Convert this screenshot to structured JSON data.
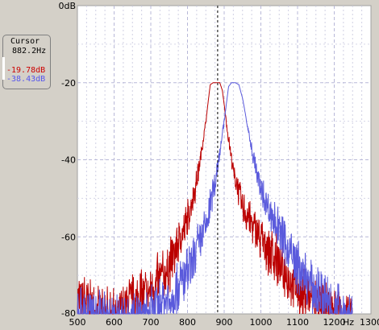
{
  "cursor_panel": {
    "title": "Cursor",
    "frequency": "882.2Hz",
    "readings": [
      {
        "value": "-19.78dB",
        "color": "#cc0000"
      },
      {
        "value": "-38.43dB",
        "color": "#5555ee"
      }
    ]
  },
  "chart_data": {
    "type": "line",
    "x_unit": "Hz",
    "xlim": [
      500,
      1300
    ],
    "ylim": [
      -80,
      0
    ],
    "x_ticks": [
      "500",
      "600",
      "700",
      "800",
      "900",
      "1000",
      "1100",
      "1200",
      "1300"
    ],
    "y_ticks": [
      "0dB",
      "-20",
      "-40",
      "-60",
      "-80"
    ],
    "grid": true,
    "cursor_x": 882.2,
    "series": [
      {
        "color": "#bb0000",
        "x": [
          500,
          550,
          600,
          650,
          700,
          750,
          775,
          800,
          825,
          850,
          862,
          870,
          880,
          888,
          895,
          910,
          925,
          950,
          1000,
          1050,
          1100,
          1150,
          1200,
          1250
        ],
        "y": [
          -74,
          -77,
          -79,
          -75,
          -72,
          -66,
          -60,
          -54,
          -45,
          -30,
          -20.5,
          -20,
          -20,
          -20,
          -22,
          -33,
          -42,
          -51,
          -59,
          -65,
          -72,
          -74,
          -78,
          -79
        ]
      },
      {
        "color": "#5a5adc",
        "x": [
          500,
          550,
          600,
          650,
          700,
          750,
          800,
          850,
          875,
          900,
          912,
          920,
          930,
          940,
          950,
          975,
          1000,
          1050,
          1100,
          1150,
          1200,
          1250
        ],
        "y": [
          -77,
          -79,
          -80,
          -80,
          -78,
          -74,
          -68,
          -56,
          -45,
          -30,
          -21,
          -20,
          -20,
          -20.5,
          -24,
          -37,
          -47,
          -57,
          -66,
          -72,
          -77,
          -80
        ]
      }
    ]
  }
}
